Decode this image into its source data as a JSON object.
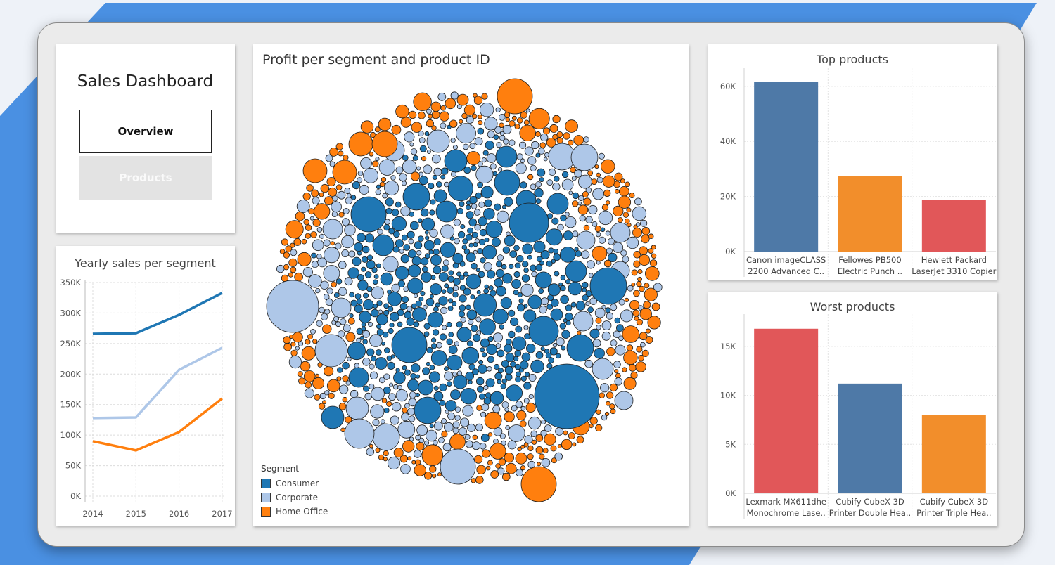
{
  "sidebar": {
    "title": "Sales Dashboard",
    "nav": [
      {
        "label": "Overview",
        "active": true
      },
      {
        "label": "Products",
        "active": false
      }
    ]
  },
  "colors": {
    "consumer": "#1f77b4",
    "corporate": "#aec7e8",
    "home_office": "#ff7f0e",
    "bar_blue": "#4e79a7",
    "bar_orange": "#f28e2b",
    "bar_red": "#e15759",
    "background_band": "#4a90e2"
  },
  "bubble": {
    "title": "Profit per segment and product ID",
    "legend_title": "Segment",
    "legend": [
      "Consumer",
      "Corporate",
      "Home Office"
    ]
  },
  "chart_data": [
    {
      "type": "line",
      "title": "Yearly sales per segment",
      "x": [
        "2014",
        "2015",
        "2016",
        "2017"
      ],
      "yticks": [
        "0K",
        "50K",
        "100K",
        "150K",
        "200K",
        "250K",
        "300K",
        "350K"
      ],
      "ylim": [
        0,
        350000
      ],
      "grid": true,
      "series": [
        {
          "color": "#1f77b4",
          "values": [
            266000,
            267000,
            297000,
            333000
          ]
        },
        {
          "color": "#aec7e8",
          "values": [
            128000,
            129000,
            207000,
            243000
          ]
        },
        {
          "color": "#ff7f0e",
          "values": [
            90000,
            75000,
            105000,
            160000
          ]
        }
      ]
    },
    {
      "type": "bar",
      "title": "Top products",
      "categories": [
        "Canon imageCLASS 2200 Advanced C..",
        "Fellowes PB500 Electric Punch ..",
        "Hewlett Packard LaserJet 3310 Copier"
      ],
      "category_lines": [
        [
          "Canon imageCLASS",
          "2200 Advanced C.."
        ],
        [
          "Fellowes PB500",
          "Electric Punch .."
        ],
        [
          "Hewlett Packard",
          "LaserJet 3310 Copier"
        ]
      ],
      "values": [
        61600,
        27400,
        18700
      ],
      "colors": [
        "#4e79a7",
        "#f28e2b",
        "#e15759"
      ],
      "yticks": [
        "0K",
        "20K",
        "40K",
        "60K"
      ],
      "ylim": [
        0,
        62000
      ]
    },
    {
      "type": "bar",
      "title": "Worst products",
      "categories": [
        "Lexmark MX611dhe Monochrome Lase..",
        "Cubify CubeX 3D Printer Double Hea..",
        "Cubify CubeX 3D Printer Triple Hea.."
      ],
      "category_lines": [
        [
          "Lexmark MX611dhe",
          "Monochrome Lase.."
        ],
        [
          "Cubify CubeX 3D",
          "Printer Double Hea.."
        ],
        [
          "Cubify CubeX 3D",
          "Printer Triple Hea.."
        ]
      ],
      "values": [
        16800,
        11200,
        8000
      ],
      "colors": [
        "#e15759",
        "#4e79a7",
        "#f28e2b"
      ],
      "yticks": [
        "0K",
        "5K",
        "10K",
        "15K"
      ],
      "ylim": [
        0,
        17000
      ]
    }
  ]
}
